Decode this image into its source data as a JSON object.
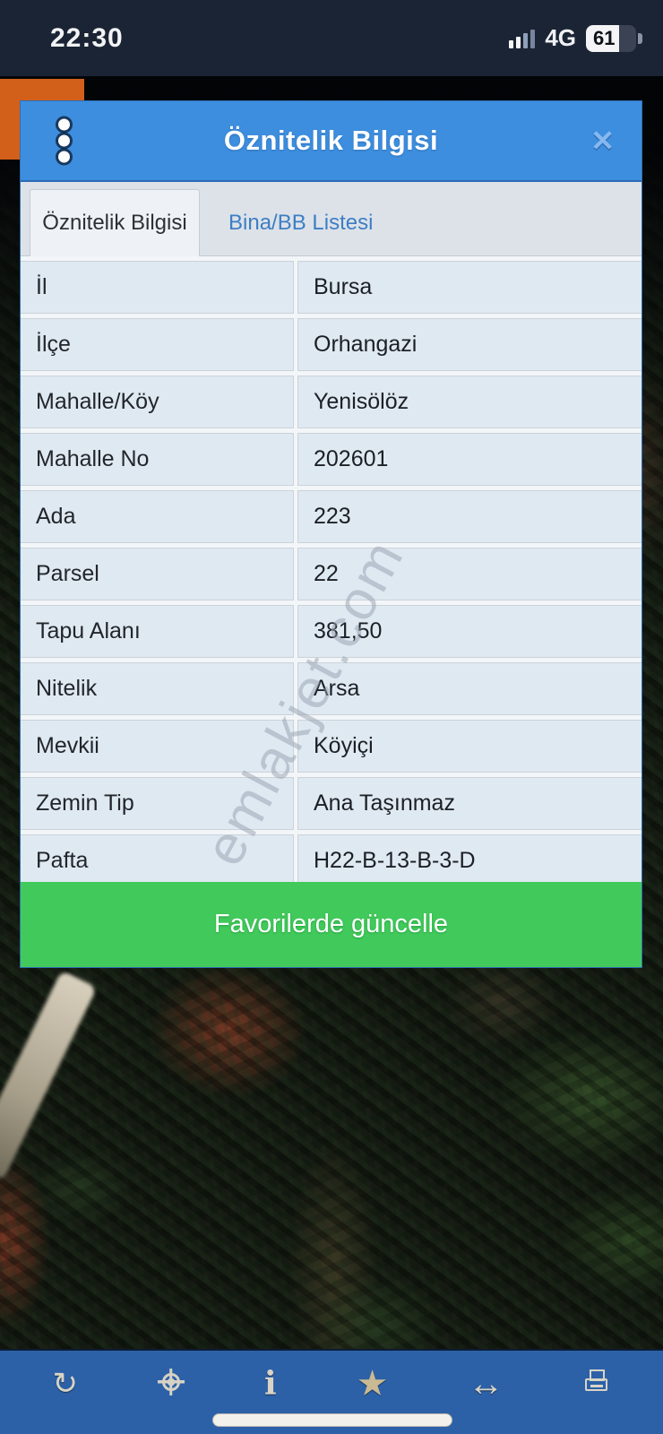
{
  "status_bar": {
    "time": "22:30",
    "network": "4G",
    "battery_percent": "61"
  },
  "modal": {
    "title": "Öznitelik Bilgisi",
    "tabs": [
      {
        "label": "Öznitelik Bilgisi",
        "active": true
      },
      {
        "label": "Bina/BB Listesi",
        "active": false
      }
    ],
    "rows": [
      {
        "label": "İl",
        "value": "Bursa"
      },
      {
        "label": "İlçe",
        "value": "Orhangazi"
      },
      {
        "label": "Mahalle/Köy",
        "value": "Yenisölöz"
      },
      {
        "label": "Mahalle No",
        "value": "202601"
      },
      {
        "label": "Ada",
        "value": "223"
      },
      {
        "label": "Parsel",
        "value": "22"
      },
      {
        "label": "Tapu Alanı",
        "value": "381,50"
      },
      {
        "label": "Nitelik",
        "value": "Arsa"
      },
      {
        "label": "Mevkii",
        "value": "Köyiçi"
      },
      {
        "label": "Zemin Tip",
        "value": "Ana Taşınmaz"
      },
      {
        "label": "Pafta",
        "value": "H22-B-13-B-3-D"
      }
    ],
    "action_button_label": "Favorilerde güncelle"
  },
  "watermark": {
    "text": "emlakjet.com"
  },
  "toolbar": {
    "icons": [
      "refresh",
      "locate",
      "info",
      "star",
      "resize-horizontal",
      "print"
    ]
  },
  "colors": {
    "status-navy": "#1b2434",
    "header-blue": "#3d8ede",
    "tab-inactive-blue": "#3e7ec5",
    "row-bg": "#dfe9f2",
    "action-green": "#41ca5b",
    "toolbar-blue": "#2c61a8",
    "orange-panel": "#d2601a"
  }
}
